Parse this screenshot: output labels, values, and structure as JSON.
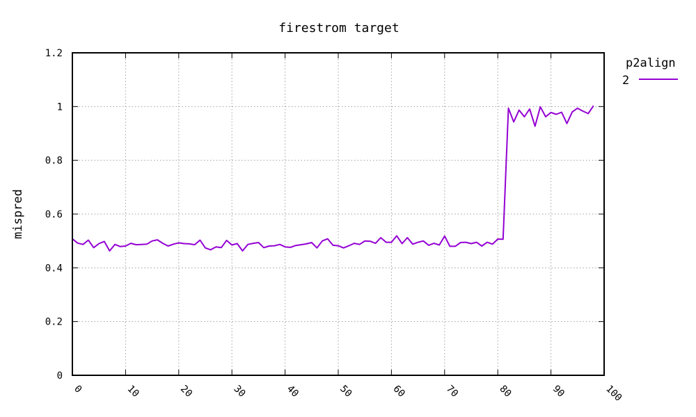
{
  "chart_data": {
    "type": "line",
    "title": "firestrom target",
    "xlabel": "",
    "ylabel": "mispred",
    "xlim": [
      0,
      100
    ],
    "ylim": [
      0,
      1.2
    ],
    "xticks": [
      0,
      10,
      20,
      30,
      40,
      50,
      60,
      70,
      80,
      90,
      100
    ],
    "xtick_labels": [
      "0",
      "10",
      "20",
      "30",
      "40",
      "50",
      "60",
      "70",
      "80",
      "90",
      "100"
    ],
    "yticks": [
      0,
      0.2,
      0.4,
      0.6,
      0.8,
      1,
      1.2
    ],
    "ytick_labels": [
      "0",
      "0.2",
      "0.4",
      "0.6",
      "0.8",
      "1",
      "1.2"
    ],
    "grid": true,
    "legend": {
      "title": "p2align",
      "position": "top-right outside"
    },
    "series": [
      {
        "name": "2",
        "color": "#9400d3",
        "x": [
          0,
          1,
          2,
          3,
          4,
          5,
          6,
          7,
          8,
          9,
          10,
          11,
          12,
          13,
          14,
          15,
          16,
          17,
          18,
          19,
          20,
          21,
          22,
          23,
          24,
          25,
          26,
          27,
          28,
          29,
          30,
          31,
          32,
          33,
          34,
          35,
          36,
          37,
          38,
          39,
          40,
          41,
          42,
          43,
          44,
          45,
          46,
          47,
          48,
          49,
          50,
          51,
          52,
          53,
          54,
          55,
          56,
          57,
          58,
          59,
          60,
          61,
          62,
          63,
          64,
          65,
          66,
          67,
          68,
          69,
          70,
          71,
          72,
          73,
          74,
          75,
          76,
          77,
          78,
          79,
          80,
          81,
          82,
          83,
          84,
          85,
          86,
          87,
          88,
          89,
          90,
          91,
          92,
          93,
          94,
          95,
          96,
          97,
          98
        ],
        "values": [
          0.508,
          0.492,
          0.487,
          0.503,
          0.475,
          0.49,
          0.498,
          0.463,
          0.487,
          0.479,
          0.481,
          0.491,
          0.486,
          0.487,
          0.488,
          0.5,
          0.504,
          0.491,
          0.481,
          0.488,
          0.493,
          0.49,
          0.489,
          0.486,
          0.503,
          0.474,
          0.467,
          0.478,
          0.475,
          0.502,
          0.485,
          0.49,
          0.463,
          0.487,
          0.491,
          0.494,
          0.475,
          0.481,
          0.482,
          0.487,
          0.478,
          0.476,
          0.483,
          0.486,
          0.489,
          0.494,
          0.474,
          0.5,
          0.508,
          0.484,
          0.482,
          0.474,
          0.482,
          0.491,
          0.487,
          0.5,
          0.499,
          0.491,
          0.512,
          0.495,
          0.495,
          0.519,
          0.49,
          0.512,
          0.488,
          0.495,
          0.5,
          0.484,
          0.491,
          0.485,
          0.518,
          0.48,
          0.48,
          0.494,
          0.495,
          0.49,
          0.495,
          0.481,
          0.495,
          0.488,
          0.507,
          0.506,
          0.994,
          0.943,
          0.987,
          0.962,
          0.991,
          0.927,
          0.999,
          0.962,
          0.978,
          0.971,
          0.979,
          0.937,
          0.98,
          0.994,
          0.983,
          0.974,
          1.003
        ]
      }
    ]
  }
}
